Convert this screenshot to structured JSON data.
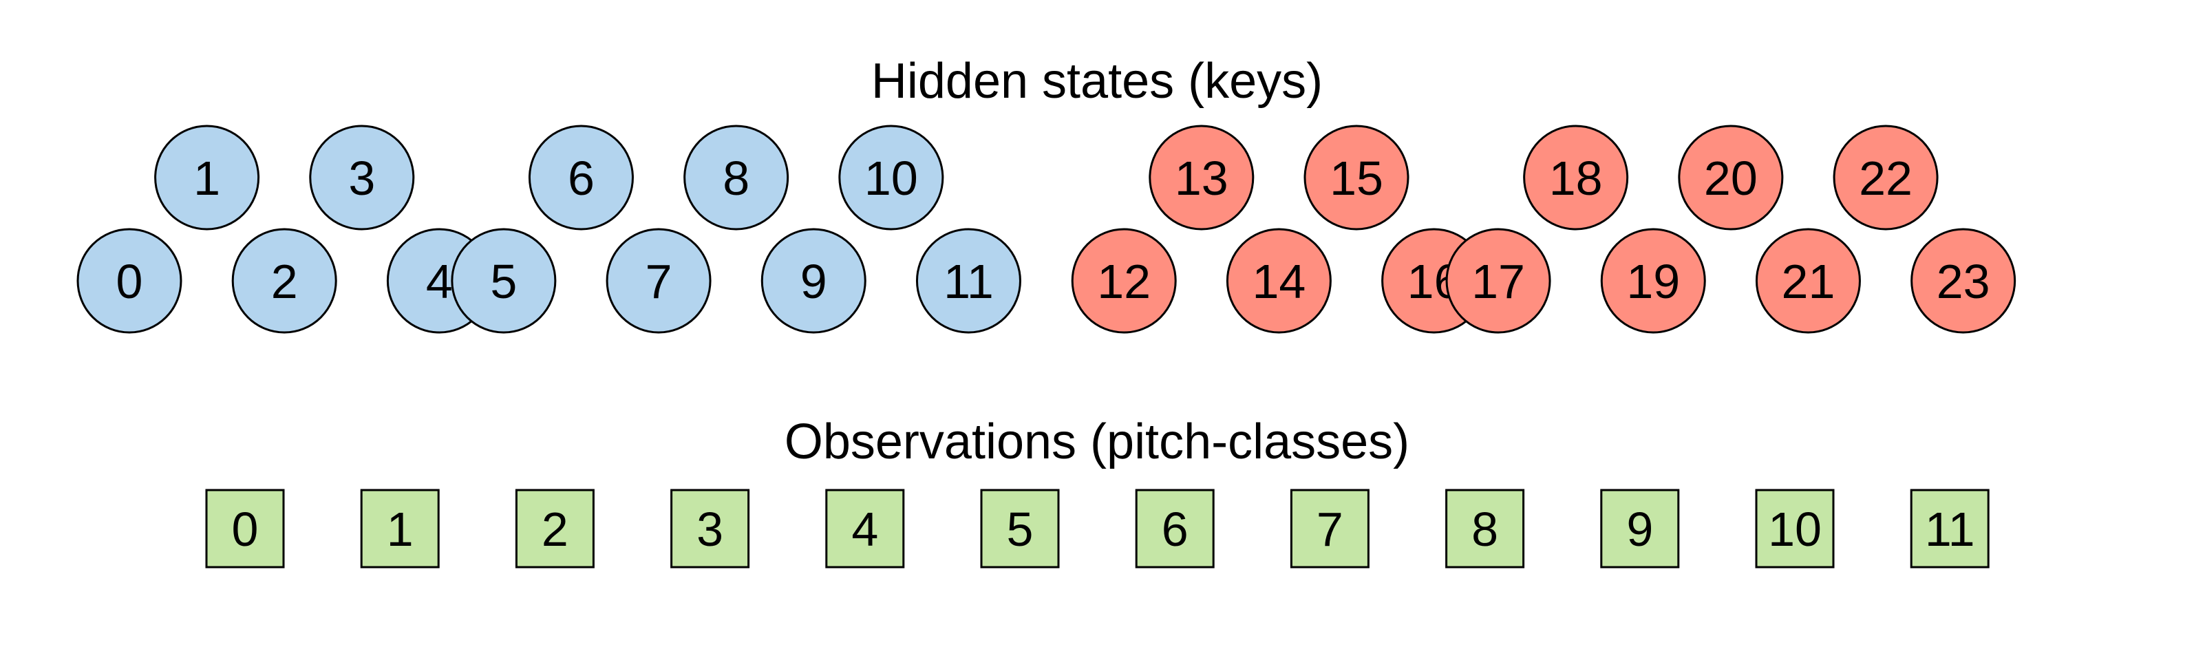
{
  "hidden_states": {
    "title": "Hidden states (keys)",
    "major_color": "#b3d4ee",
    "minor_color": "#ff8f80",
    "states": [
      {
        "label": "0",
        "mode": "major",
        "row": "lower"
      },
      {
        "label": "1",
        "mode": "major",
        "row": "upper"
      },
      {
        "label": "2",
        "mode": "major",
        "row": "lower"
      },
      {
        "label": "3",
        "mode": "major",
        "row": "upper"
      },
      {
        "label": "4",
        "mode": "major",
        "row": "lower"
      },
      {
        "label": "5",
        "mode": "major",
        "row": "lower"
      },
      {
        "label": "6",
        "mode": "major",
        "row": "upper"
      },
      {
        "label": "7",
        "mode": "major",
        "row": "lower"
      },
      {
        "label": "8",
        "mode": "major",
        "row": "upper"
      },
      {
        "label": "9",
        "mode": "major",
        "row": "lower"
      },
      {
        "label": "10",
        "mode": "major",
        "row": "upper"
      },
      {
        "label": "11",
        "mode": "major",
        "row": "lower"
      },
      {
        "label": "12",
        "mode": "minor",
        "row": "lower"
      },
      {
        "label": "13",
        "mode": "minor",
        "row": "upper"
      },
      {
        "label": "14",
        "mode": "minor",
        "row": "lower"
      },
      {
        "label": "15",
        "mode": "minor",
        "row": "upper"
      },
      {
        "label": "16",
        "mode": "minor",
        "row": "lower"
      },
      {
        "label": "17",
        "mode": "minor",
        "row": "lower"
      },
      {
        "label": "18",
        "mode": "minor",
        "row": "upper"
      },
      {
        "label": "19",
        "mode": "minor",
        "row": "lower"
      },
      {
        "label": "20",
        "mode": "minor",
        "row": "upper"
      },
      {
        "label": "21",
        "mode": "minor",
        "row": "lower"
      },
      {
        "label": "22",
        "mode": "minor",
        "row": "upper"
      },
      {
        "label": "23",
        "mode": "minor",
        "row": "lower"
      }
    ]
  },
  "observations": {
    "title": "Observations (pitch-classes)",
    "color": "#c5e6a6",
    "items": [
      "0",
      "1",
      "2",
      "3",
      "4",
      "5",
      "6",
      "7",
      "8",
      "9",
      "10",
      "11"
    ]
  }
}
